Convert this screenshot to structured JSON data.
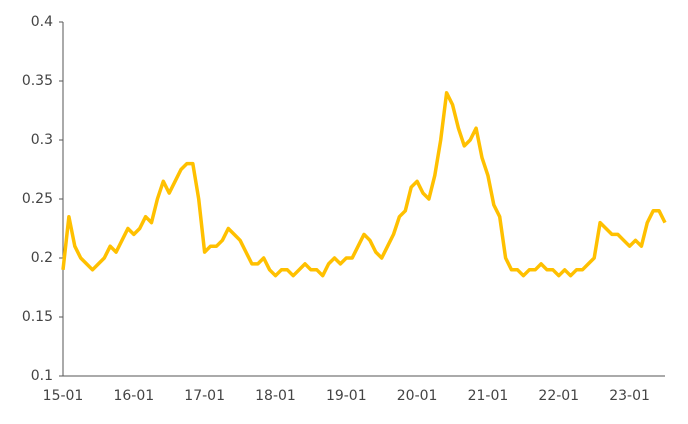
{
  "chart_data": {
    "type": "line",
    "categories": [
      "15-01",
      null,
      null,
      null,
      null,
      null,
      null,
      null,
      null,
      null,
      null,
      null,
      "16-01",
      null,
      null,
      null,
      null,
      null,
      null,
      null,
      null,
      null,
      null,
      null,
      "17-01",
      null,
      null,
      null,
      null,
      null,
      null,
      null,
      null,
      null,
      null,
      null,
      "18-01",
      null,
      null,
      null,
      null,
      null,
      null,
      null,
      null,
      null,
      null,
      null,
      "19-01",
      null,
      null,
      null,
      null,
      null,
      null,
      null,
      null,
      null,
      null,
      null,
      "20-01",
      null,
      null,
      null,
      null,
      null,
      null,
      null,
      null,
      null,
      null,
      null,
      "21-01",
      null,
      null,
      null,
      null,
      null,
      null,
      null,
      null,
      null,
      null,
      null,
      "22-01",
      null,
      null,
      null,
      null,
      null,
      null,
      null,
      null,
      null,
      null,
      null,
      "23-01",
      null,
      null,
      null,
      null,
      null,
      null
    ],
    "series": [
      {
        "color": "#ffc000",
        "values": [
          0.19,
          0.235,
          0.21,
          0.2,
          0.195,
          0.19,
          0.195,
          0.2,
          0.21,
          0.205,
          0.215,
          0.225,
          0.22,
          0.225,
          0.235,
          0.23,
          0.25,
          0.265,
          0.255,
          0.265,
          0.275,
          0.28,
          0.28,
          0.25,
          0.205,
          0.21,
          0.21,
          0.215,
          0.225,
          0.22,
          0.215,
          0.205,
          0.195,
          0.195,
          0.2,
          0.19,
          0.185,
          0.19,
          0.19,
          0.185,
          0.19,
          0.195,
          0.19,
          0.19,
          0.185,
          0.195,
          0.2,
          0.195,
          0.2,
          0.2,
          0.21,
          0.22,
          0.215,
          0.205,
          0.2,
          0.21,
          0.22,
          0.235,
          0.24,
          0.26,
          0.265,
          0.255,
          0.25,
          0.27,
          0.3,
          0.34,
          0.33,
          0.31,
          0.295,
          0.3,
          0.31,
          0.285,
          0.27,
          0.245,
          0.235,
          0.2,
          0.19,
          0.19,
          0.185,
          0.19,
          0.19,
          0.195,
          0.19,
          0.19,
          0.185,
          0.19,
          0.185,
          0.19,
          0.19,
          0.195,
          0.2,
          0.23,
          0.225,
          0.22,
          0.22,
          0.215,
          0.21,
          0.215,
          0.21,
          0.23,
          0.24,
          0.24,
          0.23
        ]
      }
    ],
    "ylim": [
      0.1,
      0.4
    ],
    "yticks": [
      0.1,
      0.15,
      0.2,
      0.25,
      0.3,
      0.35,
      0.4
    ]
  }
}
